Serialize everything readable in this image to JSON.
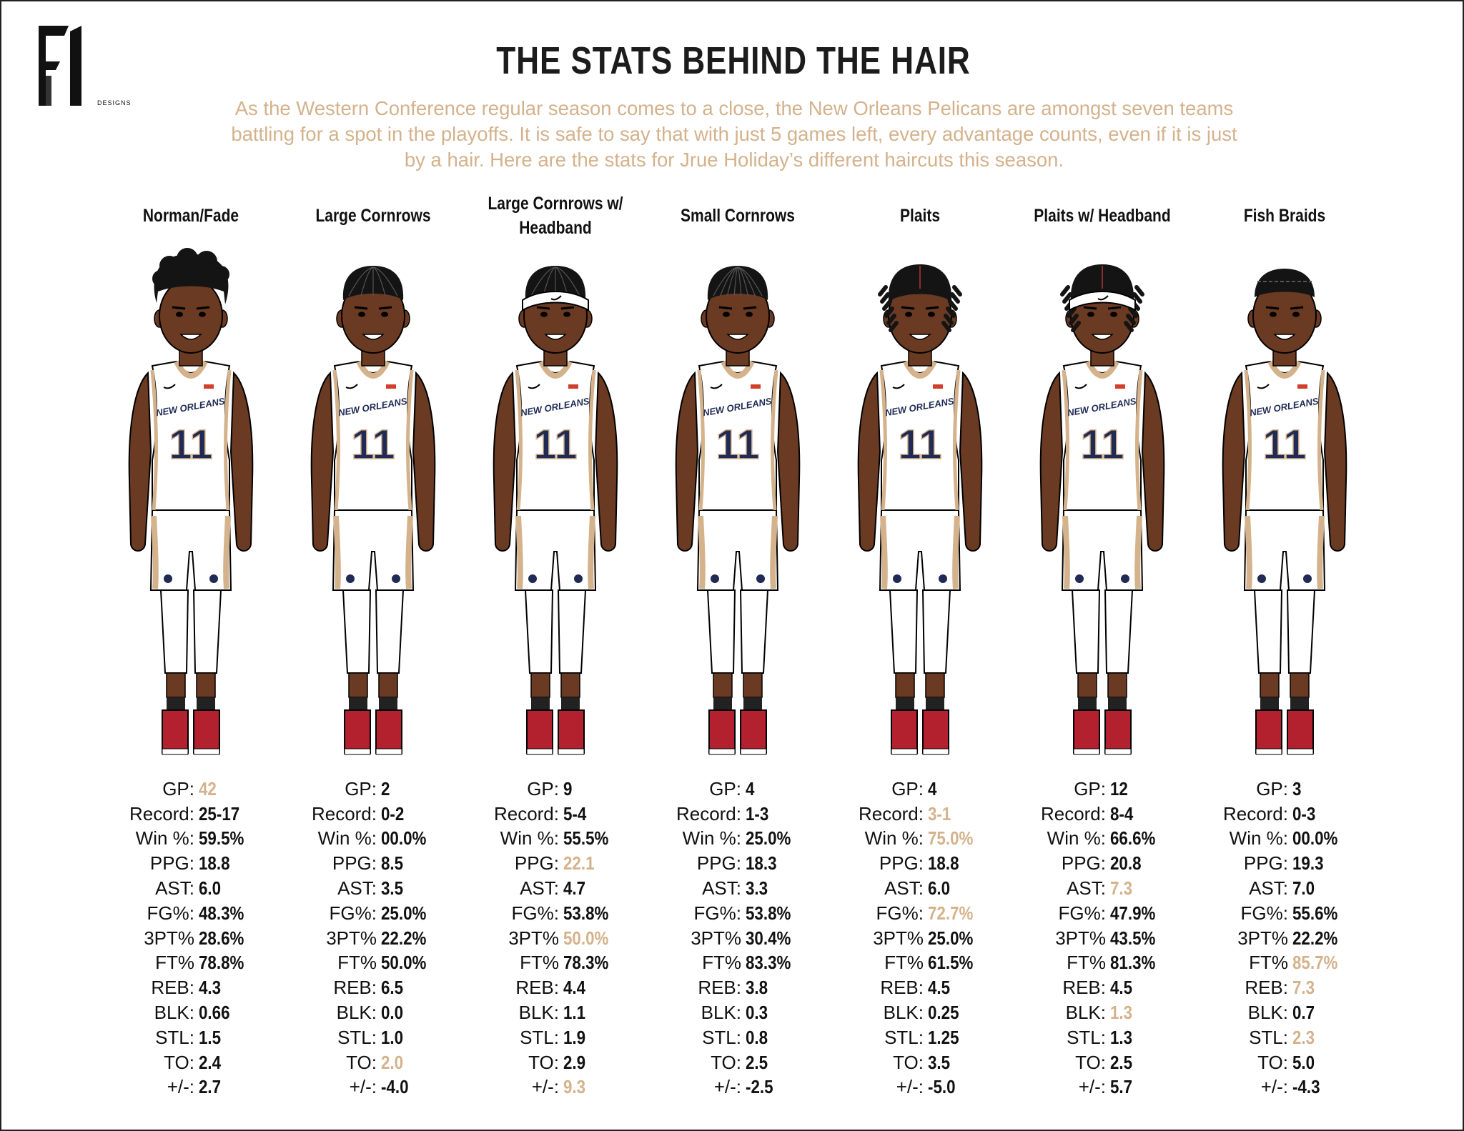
{
  "logo": {
    "mark": "FI",
    "sub": "DESIGNS"
  },
  "title": "THE STATS BEHIND THE HAIR",
  "subtitle": "As the Western Conference regular season comes to a close, the New Orleans Pelicans are amongst seven teams battling for a spot in the playoffs. It is safe to say that with just 5 games left, every advantage counts, even if it is just by a hair. Here are the stats for Jrue Holiday’s different haircuts this season.",
  "jersey": {
    "team": "NEW ORLEANS",
    "number": "11"
  },
  "colors": {
    "accent": "#d4b28c",
    "skin": "#6b3a22",
    "navy": "#1f2a55",
    "shoe": "#b3202e",
    "text": "#111111"
  },
  "stat_labels": [
    "GP:",
    "Record:",
    "Win %:",
    "PPG:",
    "AST:",
    "FG%:",
    "3PT%",
    "FT%",
    "REB:",
    "BLK:",
    "STL:",
    "TO:",
    "+/-:"
  ],
  "players": [
    {
      "name": "Norman/Fade",
      "hair": "fade",
      "headband": false,
      "stats": [
        "42",
        "25-17",
        "59.5%",
        "18.8",
        "6.0",
        "48.3%",
        "28.6%",
        "78.8%",
        "4.3",
        "0.66",
        "1.5",
        "2.4",
        "2.7"
      ],
      "highlight": [
        true,
        false,
        false,
        false,
        false,
        false,
        false,
        false,
        false,
        false,
        false,
        false,
        false
      ]
    },
    {
      "name": "Large Cornrows",
      "hair": "cornrows",
      "headband": false,
      "stats": [
        "2",
        "0-2",
        "00.0%",
        "8.5",
        "3.5",
        "25.0%",
        "22.2%",
        "50.0%",
        "6.5",
        "0.0",
        "1.0",
        "2.0",
        "-4.0"
      ],
      "highlight": [
        false,
        false,
        false,
        false,
        false,
        false,
        false,
        false,
        false,
        false,
        false,
        true,
        false
      ]
    },
    {
      "name": "Large Cornrows w/ Headband",
      "hair": "cornrows",
      "headband": true,
      "stats": [
        "9",
        "5-4",
        "55.5%",
        "22.1",
        "4.7",
        "53.8%",
        "50.0%",
        "78.3%",
        "4.4",
        "1.1",
        "1.9",
        "2.9",
        "9.3"
      ],
      "highlight": [
        false,
        false,
        false,
        true,
        false,
        false,
        true,
        false,
        false,
        false,
        false,
        false,
        true
      ]
    },
    {
      "name": "Small Cornrows",
      "hair": "small-cornrows",
      "headband": false,
      "stats": [
        "4",
        "1-3",
        "25.0%",
        "18.3",
        "3.3",
        "53.8%",
        "30.4%",
        "83.3%",
        "3.8",
        "0.3",
        "0.8",
        "2.5",
        "-2.5"
      ],
      "highlight": [
        false,
        false,
        false,
        false,
        false,
        false,
        false,
        false,
        false,
        false,
        false,
        false,
        false
      ]
    },
    {
      "name": "Plaits",
      "hair": "plaits",
      "headband": false,
      "stats": [
        "4",
        "3-1",
        "75.0%",
        "18.8",
        "6.0",
        "72.7%",
        "25.0%",
        "61.5%",
        "4.5",
        "0.25",
        "1.25",
        "3.5",
        "-5.0"
      ],
      "highlight": [
        false,
        true,
        true,
        false,
        false,
        true,
        false,
        false,
        false,
        false,
        false,
        false,
        false
      ]
    },
    {
      "name": "Plaits w/ Headband",
      "hair": "plaits",
      "headband": true,
      "stats": [
        "12",
        "8-4",
        "66.6%",
        "20.8",
        "7.3",
        "47.9%",
        "43.5%",
        "81.3%",
        "4.5",
        "1.3",
        "1.3",
        "2.5",
        "5.7"
      ],
      "highlight": [
        false,
        false,
        false,
        false,
        true,
        false,
        false,
        false,
        false,
        true,
        false,
        false,
        false
      ]
    },
    {
      "name": "Fish Braids",
      "hair": "fish-braids",
      "headband": false,
      "stats": [
        "3",
        "0-3",
        "00.0%",
        "19.3",
        "7.0",
        "55.6%",
        "22.2%",
        "85.7%",
        "7.3",
        "0.7",
        "2.3",
        "5.0",
        "-4.3"
      ],
      "highlight": [
        false,
        false,
        false,
        false,
        false,
        false,
        false,
        true,
        true,
        false,
        true,
        false,
        false
      ]
    }
  ]
}
